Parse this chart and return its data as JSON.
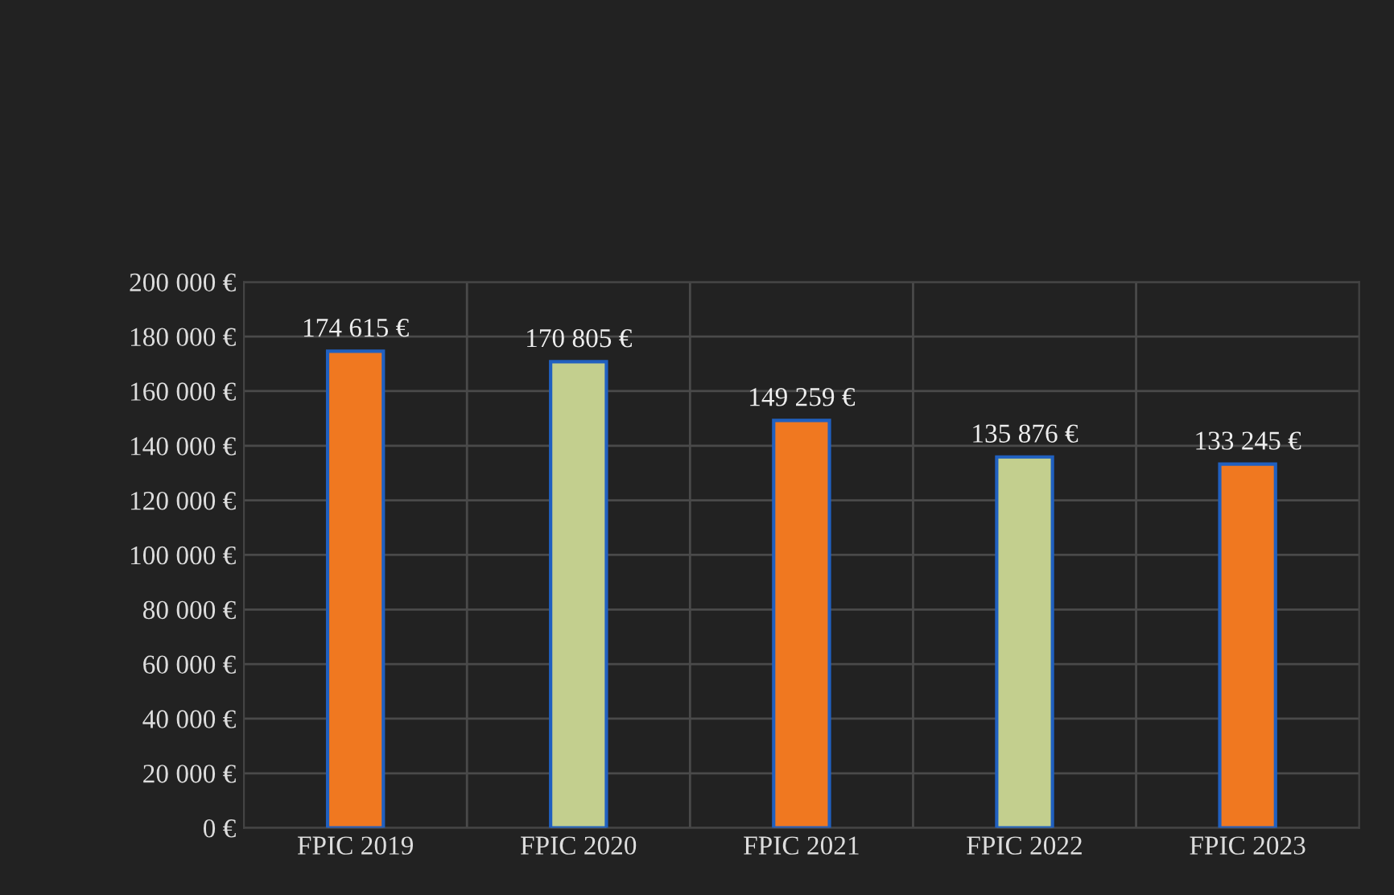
{
  "chart_data": {
    "type": "bar",
    "categories": [
      "FPIC 2019",
      "FPIC 2020",
      "FPIC 2021",
      "FPIC 2022",
      "FPIC 2023"
    ],
    "values": [
      174615,
      170805,
      149259,
      135876,
      133245
    ],
    "colors": [
      "#f07820",
      "#c3cf8e",
      "#f07820",
      "#c3cf8e",
      "#f07820"
    ],
    "value_labels": [
      "174 615 €",
      "170 805 €",
      "149 259 €",
      "135 876 €",
      "133 245 €"
    ],
    "ylim": [
      0,
      200000
    ],
    "yticks": [
      {
        "value": 0,
        "label": "0 €"
      },
      {
        "value": 20000,
        "label": "20 000 €"
      },
      {
        "value": 40000,
        "label": "40 000 €"
      },
      {
        "value": 60000,
        "label": "60 000 €"
      },
      {
        "value": 80000,
        "label": "80 000 €"
      },
      {
        "value": 100000,
        "label": "100 000 €"
      },
      {
        "value": 120000,
        "label": "120 000 €"
      },
      {
        "value": 140000,
        "label": "140 000 €"
      },
      {
        "value": 160000,
        "label": "160 000 €"
      },
      {
        "value": 180000,
        "label": "180 000 €"
      },
      {
        "value": 200000,
        "label": "200 000 €"
      }
    ],
    "grid": true
  }
}
